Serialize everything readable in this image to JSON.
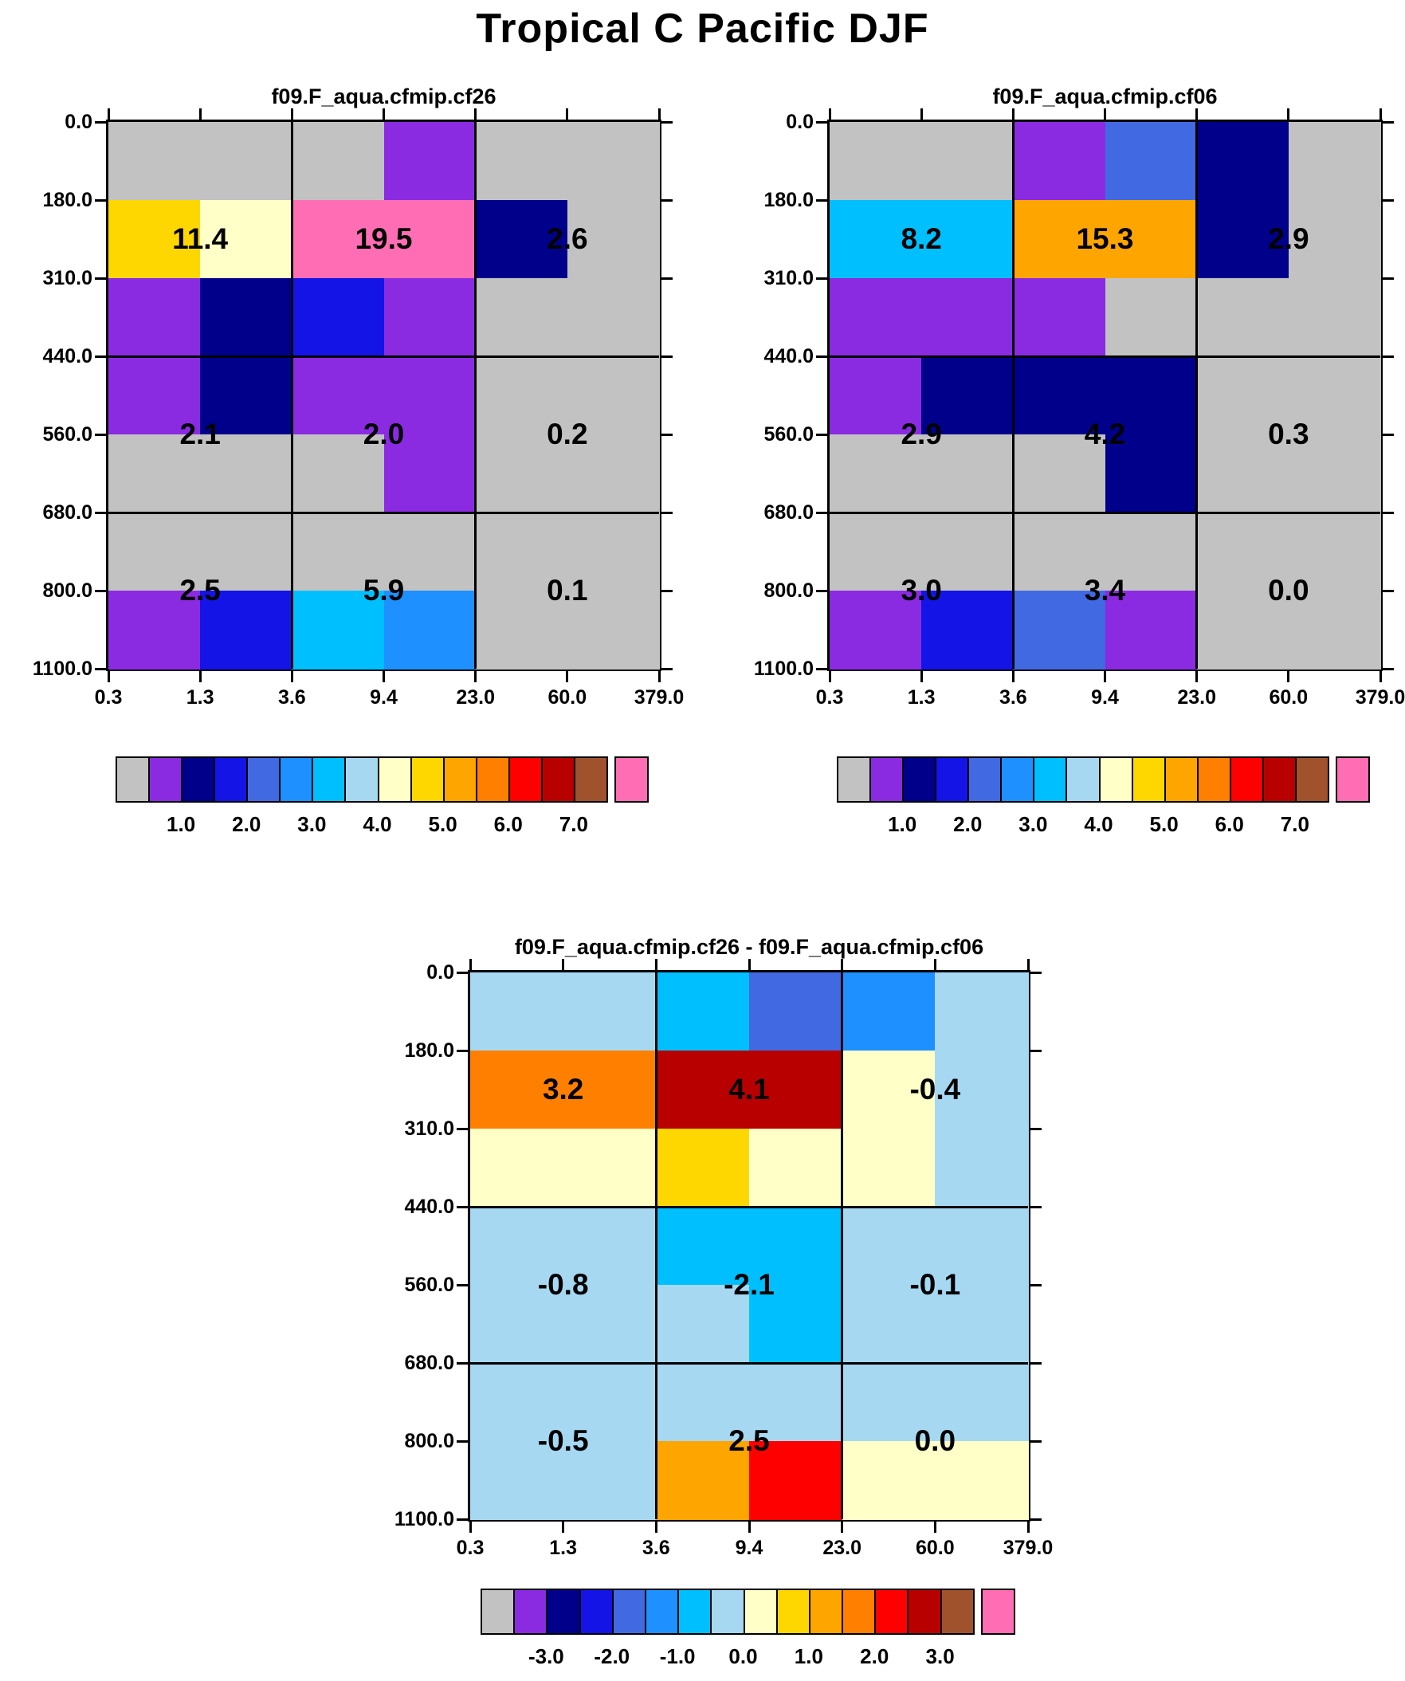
{
  "title": "Tropical C Pacific DJF",
  "palette": {
    "gray": "#C2C2C2",
    "purple": "#8A2BE2",
    "navy": "#00008B",
    "blue": "#1414E6",
    "royal": "#4169E1",
    "dodger": "#1E90FF",
    "sky": "#00BFFF",
    "pale": "#A6D8F2",
    "cream": "#FFFFC8",
    "yellow": "#FFD700",
    "orange": "#FFA500",
    "darkorange": "#FF8000",
    "red": "#FF0000",
    "crimson": "#B80000",
    "brown": "#A0522D",
    "pink": "#FF6EB4"
  },
  "colorbar": {
    "order": [
      "gray",
      "purple",
      "navy",
      "blue",
      "royal",
      "dodger",
      "sky",
      "pale",
      "cream",
      "yellow",
      "orange",
      "darkorange",
      "red",
      "crimson",
      "brown",
      "pink"
    ]
  },
  "chart_data": [
    {
      "type": "heatmap",
      "title": "f09.F_aqua.cfmip.cf26",
      "xlabel_ticks": [
        "0.3",
        "1.3",
        "3.6",
        "9.4",
        "23.0",
        "60.0",
        "379.0"
      ],
      "ylabel_ticks": [
        "0.0",
        "180.0",
        "310.0",
        "440.0",
        "560.0",
        "680.0",
        "800.0",
        "1100.0"
      ],
      "cell_colors": [
        [
          "gray",
          "gray",
          "gray",
          "purple",
          "gray",
          "gray"
        ],
        [
          "yellow",
          "cream",
          "pink",
          "pink",
          "navy",
          "gray"
        ],
        [
          "purple",
          "navy",
          "blue",
          "purple",
          "gray",
          "gray"
        ],
        [
          "purple",
          "navy",
          "purple",
          "purple",
          "gray",
          "gray"
        ],
        [
          "gray",
          "gray",
          "gray",
          "purple",
          "gray",
          "gray"
        ],
        [
          "gray",
          "gray",
          "gray",
          "gray",
          "gray",
          "gray"
        ],
        [
          "purple",
          "blue",
          "sky",
          "dodger",
          "gray",
          "gray"
        ]
      ],
      "group_sums": [
        [
          "11.4",
          "19.5",
          "2.6"
        ],
        [
          "2.1",
          "2.0",
          "0.2"
        ],
        [
          "2.5",
          "5.9",
          "0.1"
        ]
      ],
      "colorbar_ticks": [
        "1.0",
        "2.0",
        "3.0",
        "4.0",
        "5.0",
        "6.0",
        "7.0"
      ]
    },
    {
      "type": "heatmap",
      "title": "f09.F_aqua.cfmip.cf06",
      "xlabel_ticks": [
        "0.3",
        "1.3",
        "3.6",
        "9.4",
        "23.0",
        "60.0",
        "379.0"
      ],
      "ylabel_ticks": [
        "0.0",
        "180.0",
        "310.0",
        "440.0",
        "560.0",
        "680.0",
        "800.0",
        "1100.0"
      ],
      "cell_colors": [
        [
          "gray",
          "gray",
          "purple",
          "royal",
          "navy",
          "gray"
        ],
        [
          "sky",
          "sky",
          "orange",
          "orange",
          "navy",
          "gray"
        ],
        [
          "purple",
          "purple",
          "purple",
          "gray",
          "gray",
          "gray"
        ],
        [
          "purple",
          "navy",
          "navy",
          "navy",
          "gray",
          "gray"
        ],
        [
          "gray",
          "gray",
          "gray",
          "navy",
          "gray",
          "gray"
        ],
        [
          "gray",
          "gray",
          "gray",
          "gray",
          "gray",
          "gray"
        ],
        [
          "purple",
          "blue",
          "royal",
          "purple",
          "gray",
          "gray"
        ]
      ],
      "group_sums": [
        [
          "8.2",
          "15.3",
          "2.9"
        ],
        [
          "2.9",
          "4.2",
          "0.3"
        ],
        [
          "3.0",
          "3.4",
          "0.0"
        ]
      ],
      "colorbar_ticks": [
        "1.0",
        "2.0",
        "3.0",
        "4.0",
        "5.0",
        "6.0",
        "7.0"
      ]
    },
    {
      "type": "heatmap",
      "title": "f09.F_aqua.cfmip.cf26 - f09.F_aqua.cfmip.cf06",
      "xlabel_ticks": [
        "0.3",
        "1.3",
        "3.6",
        "9.4",
        "23.0",
        "60.0",
        "379.0"
      ],
      "ylabel_ticks": [
        "0.0",
        "180.0",
        "310.0",
        "440.0",
        "560.0",
        "680.0",
        "800.0",
        "1100.0"
      ],
      "cell_colors": [
        [
          "pale",
          "pale",
          "sky",
          "royal",
          "dodger",
          "pale"
        ],
        [
          "darkorange",
          "darkorange",
          "crimson",
          "crimson",
          "cream",
          "pale"
        ],
        [
          "cream",
          "cream",
          "yellow",
          "cream",
          "cream",
          "pale"
        ],
        [
          "pale",
          "pale",
          "sky",
          "sky",
          "pale",
          "pale"
        ],
        [
          "pale",
          "pale",
          "pale",
          "sky",
          "pale",
          "pale"
        ],
        [
          "pale",
          "pale",
          "pale",
          "pale",
          "pale",
          "pale"
        ],
        [
          "pale",
          "pale",
          "orange",
          "red",
          "cream",
          "cream"
        ]
      ],
      "group_sums": [
        [
          "3.2",
          "4.1",
          "-0.4"
        ],
        [
          "-0.8",
          "-2.1",
          "-0.1"
        ],
        [
          "-0.5",
          "2.5",
          "0.0"
        ]
      ],
      "colorbar_ticks": [
        "-3.0",
        "-2.0",
        "-1.0",
        "0.0",
        "1.0",
        "2.0",
        "3.0"
      ]
    }
  ]
}
